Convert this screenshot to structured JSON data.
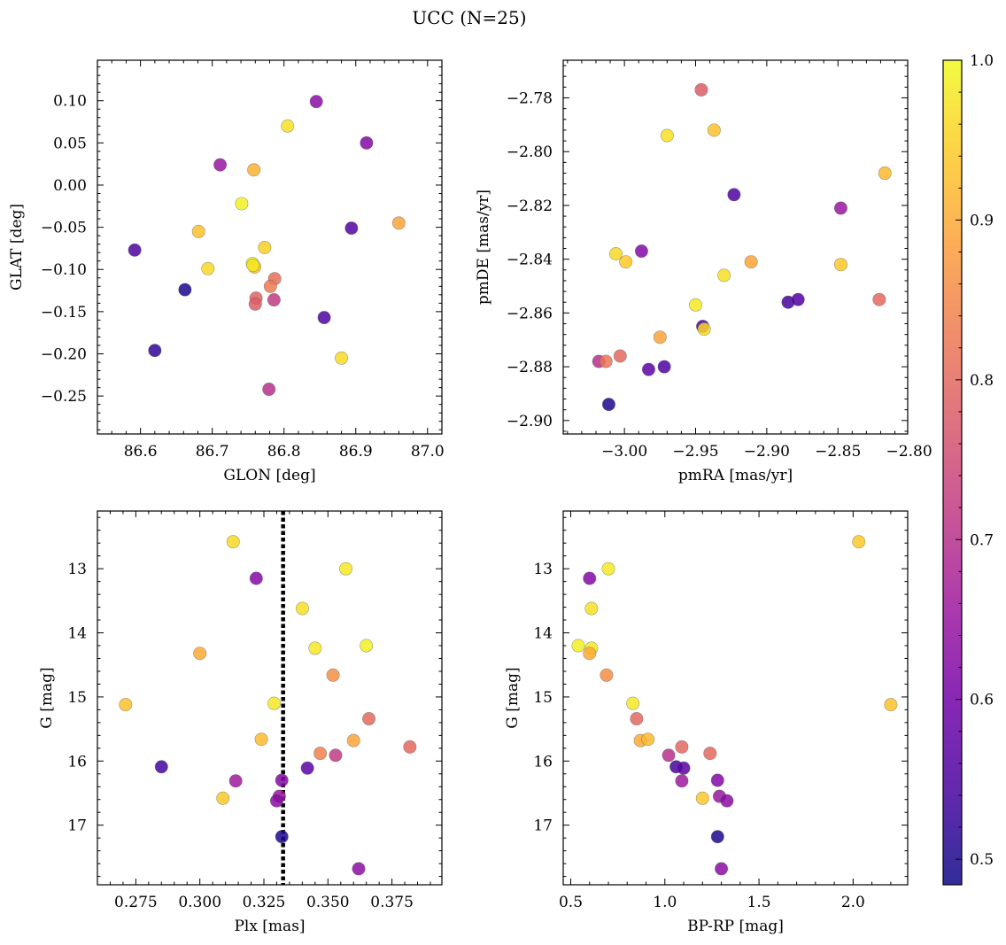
{
  "figure": {
    "title": "UCC (N=25)"
  },
  "colorbar": {
    "vmin": 0.484,
    "vmax": 1.0,
    "ticks": [
      0.5,
      0.6,
      0.7,
      0.8,
      0.9,
      1.0
    ],
    "tick_labels": [
      "0.5",
      "0.6",
      "0.7",
      "0.8",
      "0.9",
      "1.0"
    ],
    "colormap": "plasma"
  },
  "colormap_stops": [
    "#0d0887",
    "#46039f",
    "#7201a8",
    "#9c179e",
    "#bd3786",
    "#d8576b",
    "#ed7953",
    "#fb9f3a",
    "#fdca26",
    "#f0f921"
  ],
  "reference_line": {
    "panel": "plx_g",
    "x": 0.3325,
    "style": "dotted",
    "color": "#000000"
  },
  "chart_data": [
    {
      "type": "scatter",
      "id": "glon_glat",
      "xlabel": "GLON [deg]",
      "ylabel": "GLAT [deg]",
      "xlim": [
        86.54,
        87.02
      ],
      "ylim": [
        -0.295,
        0.148
      ],
      "xticks": [
        86.6,
        86.7,
        86.8,
        86.9,
        87.0
      ],
      "xtick_labels": [
        "86.6",
        "86.7",
        "86.8",
        "86.9",
        "87.0"
      ],
      "yticks": [
        0.1,
        0.05,
        0.0,
        -0.05,
        -0.1,
        -0.15,
        -0.2,
        -0.25
      ],
      "ytick_labels": [
        "0.10",
        "0.05",
        "0.00",
        "−0.05",
        "−0.10",
        "−0.15",
        "−0.20",
        "−0.25"
      ],
      "x": [
        86.845,
        86.805,
        86.915,
        86.711,
        86.758,
        86.741,
        86.96,
        86.894,
        86.681,
        86.773,
        86.592,
        86.694,
        86.756,
        86.759,
        86.787,
        86.781,
        86.662,
        86.761,
        86.786,
        86.76,
        86.856,
        86.62,
        86.88,
        86.779,
        86.757
      ],
      "y": [
        0.099,
        0.07,
        0.05,
        0.024,
        0.018,
        -0.022,
        -0.045,
        -0.051,
        -0.055,
        -0.074,
        -0.077,
        -0.099,
        -0.093,
        -0.097,
        -0.111,
        -0.12,
        -0.124,
        -0.134,
        -0.136,
        -0.141,
        -0.157,
        -0.196,
        -0.205,
        -0.242,
        -0.095
      ],
      "c": [
        0.63,
        0.97,
        0.62,
        0.65,
        0.91,
        0.99,
        0.89,
        0.56,
        0.93,
        0.95,
        0.55,
        0.96,
        0.99,
        0.93,
        0.81,
        0.83,
        0.5,
        0.79,
        0.72,
        0.78,
        0.55,
        0.52,
        0.96,
        0.7,
        0.98
      ]
    },
    {
      "type": "scatter",
      "id": "pmra_pmde",
      "xlabel": "pmRA [mas/yr]",
      "ylabel": "pmDE [mas/yr]",
      "xlim": [
        -3.043,
        -2.801
      ],
      "ylim": [
        -2.905,
        -2.766
      ],
      "xticks": [
        -3.0,
        -2.95,
        -2.9,
        -2.85,
        -2.8
      ],
      "xtick_labels": [
        "−3.00",
        "−2.95",
        "−2.90",
        "−2.85",
        "−2.80"
      ],
      "yticks": [
        -2.78,
        -2.8,
        -2.82,
        -2.84,
        -2.86,
        -2.88,
        -2.9
      ],
      "ytick_labels": [
        "−2.78",
        "−2.80",
        "−2.82",
        "−2.84",
        "−2.86",
        "−2.88",
        "−2.90"
      ],
      "x": [
        -2.946,
        -2.97,
        -2.937,
        -2.817,
        -2.923,
        -2.848,
        -2.988,
        -3.006,
        -2.999,
        -2.911,
        -2.848,
        -2.93,
        -2.821,
        -2.885,
        -2.878,
        -2.95,
        -2.945,
        -2.944,
        -2.975,
        -3.018,
        -3.013,
        -3.003,
        -2.972,
        -2.983,
        -3.011
      ],
      "y": [
        -2.777,
        -2.794,
        -2.792,
        -2.808,
        -2.816,
        -2.821,
        -2.837,
        -2.838,
        -2.841,
        -2.841,
        -2.842,
        -2.846,
        -2.855,
        -2.856,
        -2.855,
        -2.857,
        -2.865,
        -2.866,
        -2.869,
        -2.878,
        -2.878,
        -2.876,
        -2.88,
        -2.881,
        -2.894
      ],
      "c": [
        0.78,
        0.97,
        0.93,
        0.92,
        0.55,
        0.65,
        0.62,
        0.96,
        0.94,
        0.89,
        0.94,
        0.97,
        0.8,
        0.54,
        0.56,
        0.98,
        0.55,
        0.96,
        0.89,
        0.7,
        0.82,
        0.8,
        0.55,
        0.57,
        0.5
      ]
    },
    {
      "type": "scatter",
      "id": "plx_g",
      "xlabel": "Plx [mas]",
      "ylabel": "G [mag]",
      "xlim": [
        0.26,
        0.3945
      ],
      "ylim": [
        17.93,
        12.1
      ],
      "y_inverted": true,
      "xticks": [
        0.275,
        0.3,
        0.325,
        0.35,
        0.375
      ],
      "xtick_labels": [
        "0.275",
        "0.300",
        "0.325",
        "0.350",
        "0.375"
      ],
      "yticks": [
        13,
        14,
        15,
        16,
        17
      ],
      "ytick_labels": [
        "13",
        "14",
        "15",
        "16",
        "17"
      ],
      "x": [
        0.313,
        0.357,
        0.322,
        0.34,
        0.345,
        0.365,
        0.3,
        0.352,
        0.271,
        0.329,
        0.366,
        0.324,
        0.36,
        0.382,
        0.347,
        0.285,
        0.342,
        0.314,
        0.309,
        0.332,
        0.331,
        0.33,
        0.332,
        0.362,
        0.353
      ],
      "y": [
        12.58,
        13.0,
        13.15,
        13.62,
        14.24,
        14.2,
        14.32,
        14.66,
        15.12,
        15.1,
        15.34,
        15.66,
        15.68,
        15.78,
        15.88,
        16.09,
        16.11,
        16.31,
        16.58,
        16.3,
        16.55,
        16.62,
        17.18,
        17.68,
        15.91
      ],
      "c": [
        0.96,
        0.98,
        0.62,
        0.97,
        0.98,
        0.99,
        0.9,
        0.86,
        0.93,
        0.98,
        0.8,
        0.92,
        0.89,
        0.8,
        0.84,
        0.54,
        0.57,
        0.66,
        0.94,
        0.62,
        0.65,
        0.63,
        0.5,
        0.63,
        0.72
      ]
    },
    {
      "type": "scatter",
      "id": "bprp_g",
      "xlabel": "BP-RP [mag]",
      "ylabel": "G [mag]",
      "xlim": [
        0.46,
        2.29
      ],
      "ylim": [
        17.93,
        12.1
      ],
      "y_inverted": true,
      "xticks": [
        0.5,
        1.0,
        1.5,
        2.0
      ],
      "xtick_labels": [
        "0.5",
        "1.0",
        "1.5",
        "2.0"
      ],
      "yticks": [
        13,
        14,
        15,
        16,
        17
      ],
      "ytick_labels": [
        "13",
        "14",
        "15",
        "16",
        "17"
      ],
      "x": [
        2.03,
        0.7,
        0.6,
        0.61,
        0.54,
        0.61,
        0.6,
        0.69,
        0.83,
        2.2,
        0.85,
        0.87,
        0.91,
        1.09,
        1.24,
        1.02,
        1.06,
        1.1,
        1.09,
        1.28,
        1.2,
        1.29,
        1.33,
        1.28,
        1.3
      ],
      "y": [
        12.58,
        13.0,
        13.15,
        13.62,
        14.2,
        14.24,
        14.32,
        14.66,
        15.1,
        15.12,
        15.34,
        15.68,
        15.66,
        15.78,
        15.88,
        15.91,
        16.09,
        16.11,
        16.31,
        16.3,
        16.58,
        16.55,
        16.62,
        17.18,
        17.68
      ],
      "c": [
        0.94,
        0.98,
        0.62,
        0.97,
        0.99,
        0.98,
        0.9,
        0.86,
        0.98,
        0.93,
        0.8,
        0.9,
        0.92,
        0.8,
        0.8,
        0.7,
        0.54,
        0.57,
        0.66,
        0.62,
        0.94,
        0.65,
        0.63,
        0.5,
        0.63
      ]
    }
  ]
}
